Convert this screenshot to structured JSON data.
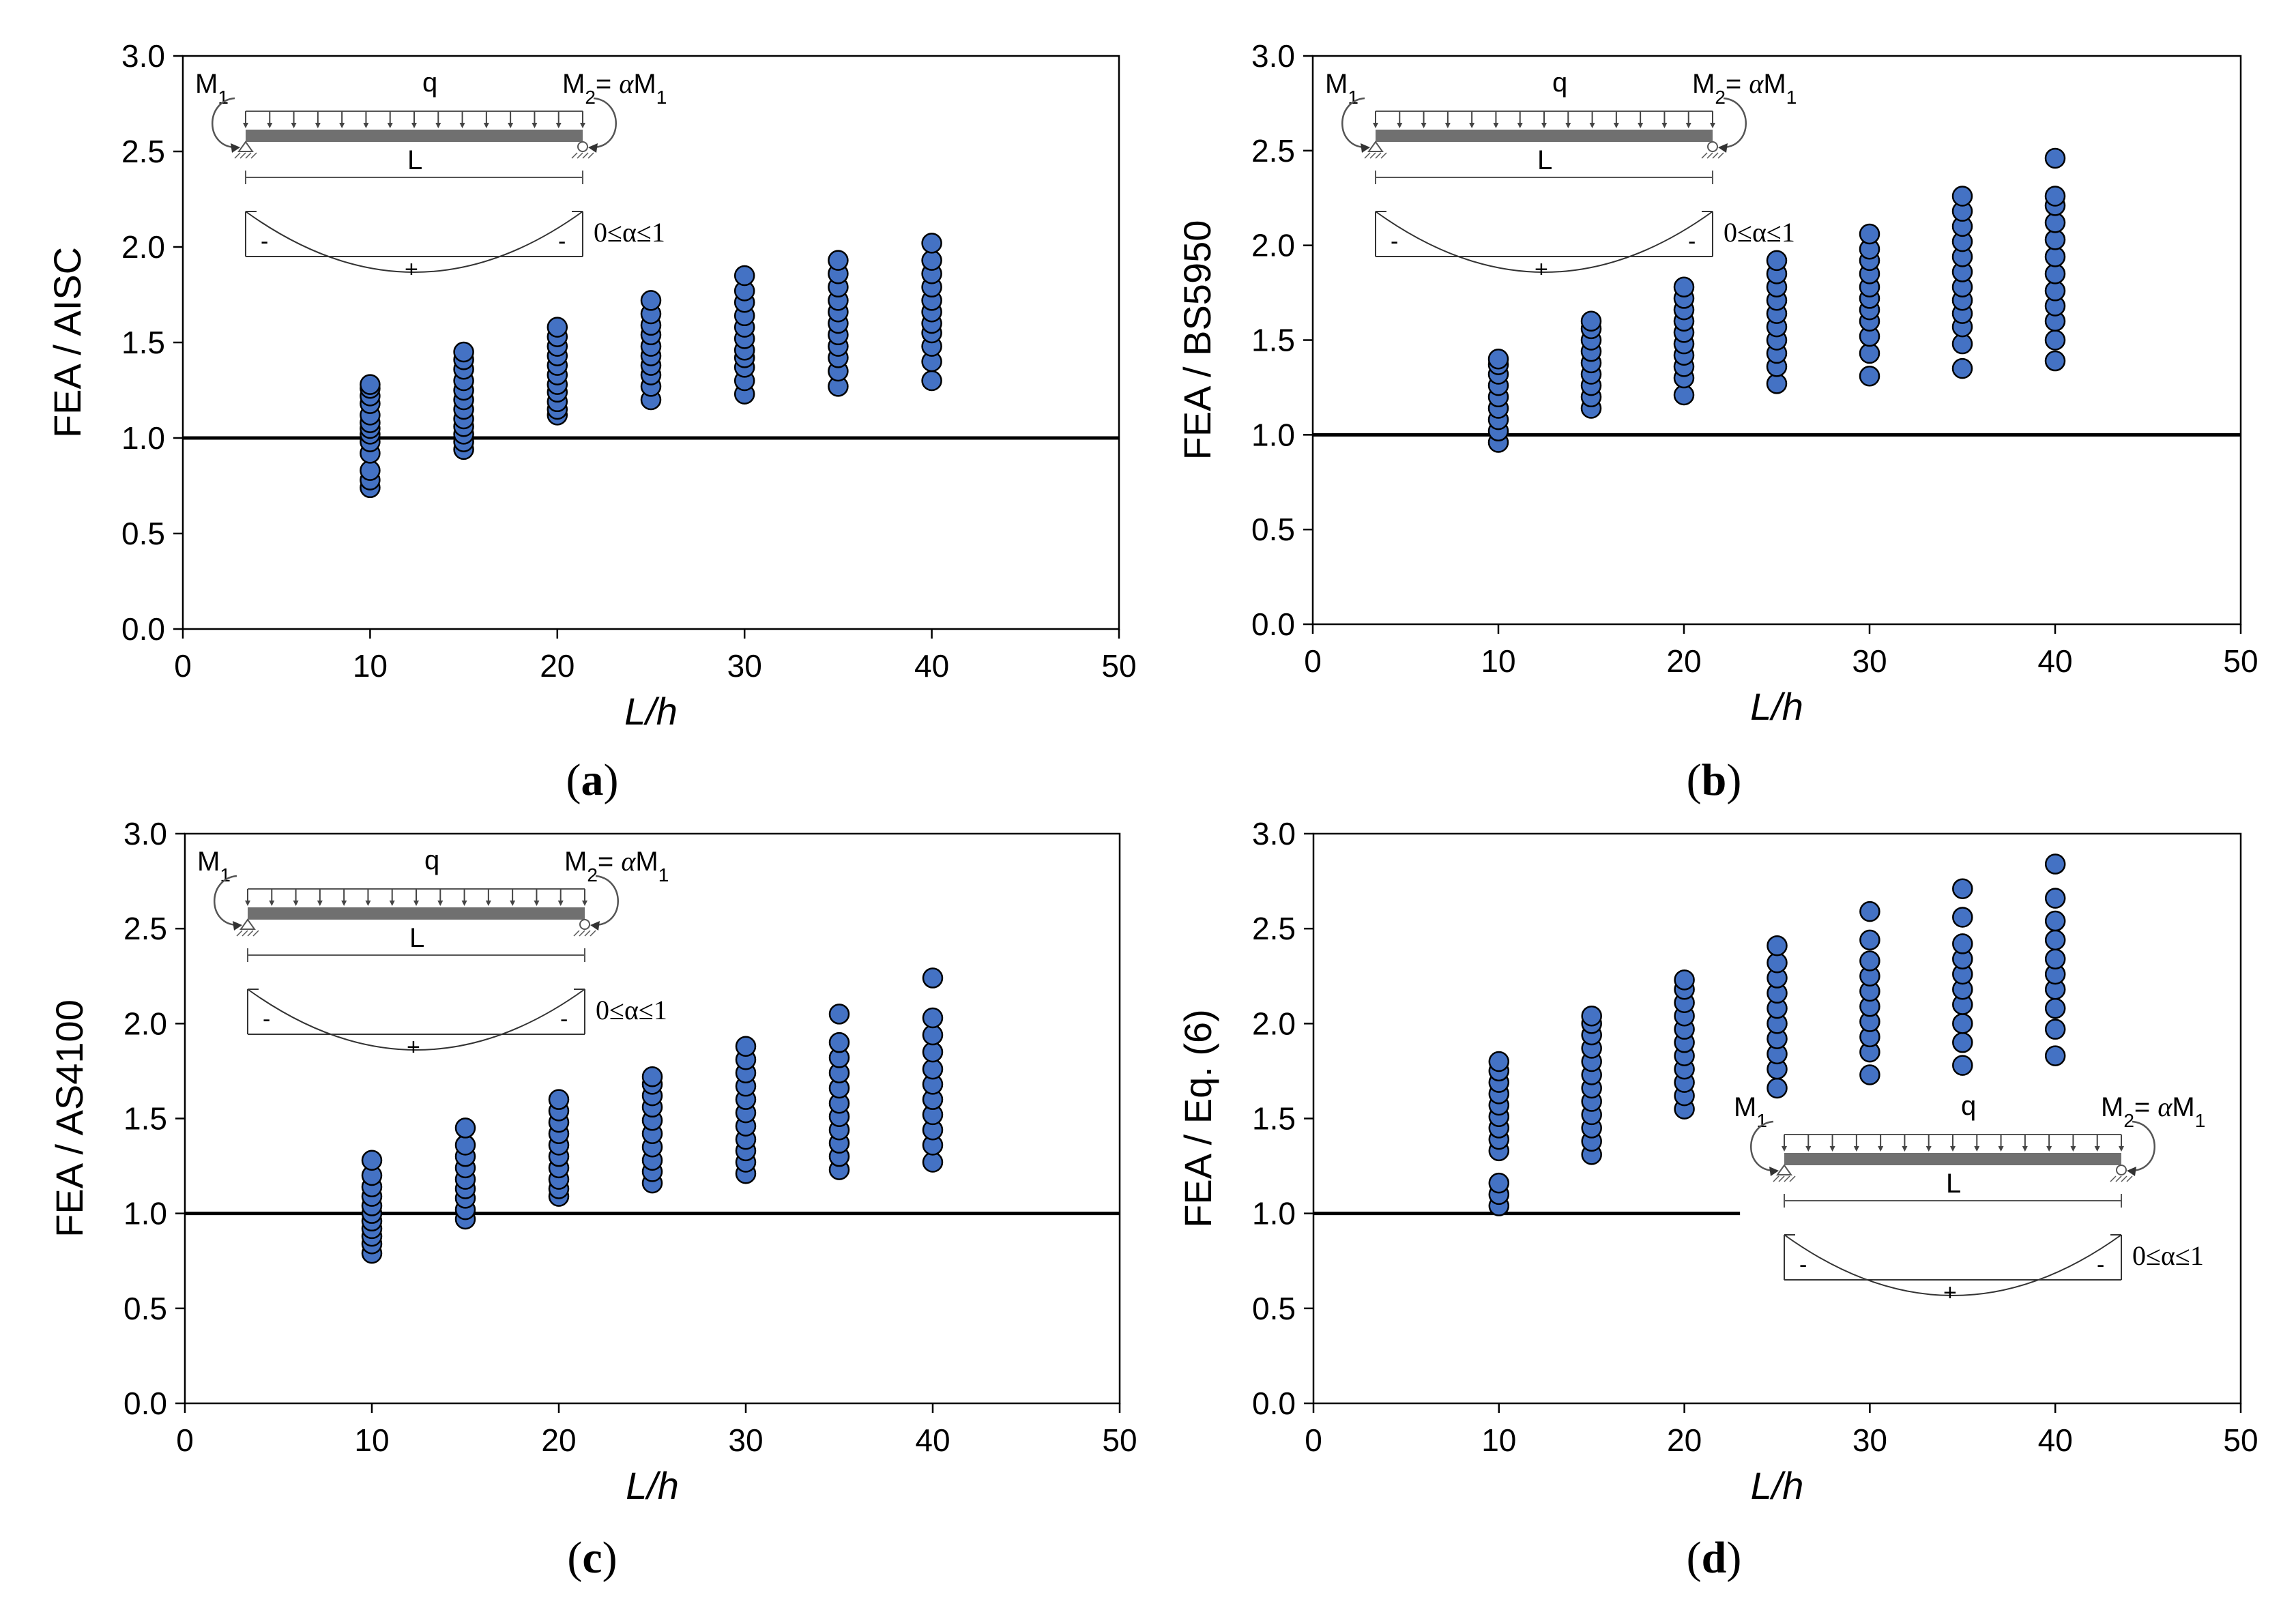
{
  "colors": {
    "marker": "#4472C4",
    "marker_edge": "#000000",
    "axis": "#000000",
    "reference_line": "#000000"
  },
  "inset": {
    "m1": "M1",
    "q": "q",
    "m2": "M2= αM1",
    "span": "L",
    "alpha_range": "0≤α≤1",
    "neg": "-",
    "pos": "+"
  },
  "chart_data": [
    {
      "id": "a",
      "type": "scatter",
      "caption": "(a)",
      "caption_letter": "a",
      "xlabel": "L/h",
      "ylabel": "FEA / AISC",
      "xlim": [
        0,
        50
      ],
      "ylim": [
        0,
        3
      ],
      "xticks": [
        "0",
        "10",
        "20",
        "30",
        "40",
        "50"
      ],
      "yticks": [
        "0.0",
        "0.5",
        "1.0",
        "1.5",
        "2.0",
        "2.5",
        "3.0"
      ],
      "reference_line": 1.0,
      "inset_position": "top-left",
      "series": [
        {
          "x": 10,
          "values": [
            0.74,
            0.78,
            0.83,
            0.92,
            0.98,
            1.02,
            1.05,
            1.08,
            1.12,
            1.18,
            1.22,
            1.26,
            1.28
          ]
        },
        {
          "x": 15,
          "values": [
            0.94,
            0.98,
            1.02,
            1.06,
            1.1,
            1.15,
            1.2,
            1.25,
            1.3,
            1.36,
            1.41,
            1.45
          ]
        },
        {
          "x": 20,
          "values": [
            1.12,
            1.15,
            1.19,
            1.24,
            1.28,
            1.33,
            1.38,
            1.43,
            1.48,
            1.53,
            1.58
          ]
        },
        {
          "x": 25,
          "values": [
            1.2,
            1.27,
            1.33,
            1.38,
            1.43,
            1.48,
            1.54,
            1.59,
            1.65,
            1.72
          ]
        },
        {
          "x": 30,
          "values": [
            1.23,
            1.3,
            1.37,
            1.42,
            1.46,
            1.52,
            1.58,
            1.64,
            1.71,
            1.77,
            1.85
          ]
        },
        {
          "x": 35,
          "values": [
            1.27,
            1.35,
            1.42,
            1.48,
            1.54,
            1.6,
            1.66,
            1.72,
            1.79,
            1.86,
            1.93
          ]
        },
        {
          "x": 40,
          "values": [
            1.3,
            1.4,
            1.48,
            1.55,
            1.6,
            1.66,
            1.72,
            1.79,
            1.86,
            1.93,
            2.02
          ]
        }
      ]
    },
    {
      "id": "b",
      "type": "scatter",
      "caption": "(b)",
      "caption_letter": "b",
      "xlabel": "L/h",
      "ylabel": "FEA / BS5950",
      "xlim": [
        0,
        50
      ],
      "ylim": [
        0,
        3
      ],
      "xticks": [
        "0",
        "10",
        "20",
        "30",
        "40",
        "50"
      ],
      "yticks": [
        "0.0",
        "0.5",
        "1.0",
        "1.5",
        "2.0",
        "2.5",
        "3.0"
      ],
      "reference_line": 1.0,
      "inset_position": "top-left",
      "series": [
        {
          "x": 10,
          "values": [
            0.96,
            1.02,
            1.08,
            1.14,
            1.2,
            1.26,
            1.32,
            1.37,
            1.4
          ]
        },
        {
          "x": 15,
          "values": [
            1.14,
            1.2,
            1.26,
            1.32,
            1.38,
            1.44,
            1.5,
            1.56,
            1.6
          ]
        },
        {
          "x": 20,
          "values": [
            1.21,
            1.3,
            1.36,
            1.42,
            1.48,
            1.54,
            1.6,
            1.66,
            1.72,
            1.78
          ]
        },
        {
          "x": 25,
          "values": [
            1.27,
            1.36,
            1.43,
            1.5,
            1.57,
            1.64,
            1.71,
            1.78,
            1.85,
            1.92
          ]
        },
        {
          "x": 30,
          "values": [
            1.31,
            1.43,
            1.52,
            1.6,
            1.66,
            1.72,
            1.78,
            1.85,
            1.92,
            1.98,
            2.06
          ]
        },
        {
          "x": 35,
          "values": [
            1.35,
            1.48,
            1.57,
            1.64,
            1.71,
            1.78,
            1.86,
            1.94,
            2.02,
            2.1,
            2.18,
            2.26
          ]
        },
        {
          "x": 40,
          "values": [
            1.39,
            1.5,
            1.6,
            1.68,
            1.76,
            1.85,
            1.94,
            2.03,
            2.12,
            2.21,
            2.26,
            2.46
          ]
        }
      ]
    },
    {
      "id": "c",
      "type": "scatter",
      "caption": "(c)",
      "caption_letter": "c",
      "xlabel": "L/h",
      "ylabel": "FEA / AS4100",
      "xlim": [
        0,
        50
      ],
      "ylim": [
        0,
        3
      ],
      "xticks": [
        "0",
        "10",
        "20",
        "30",
        "40",
        "50"
      ],
      "yticks": [
        "0.0",
        "0.5",
        "1.0",
        "1.5",
        "2.0",
        "2.5",
        "3.0"
      ],
      "reference_line": 1.0,
      "inset_position": "top-left",
      "series": [
        {
          "x": 10,
          "values": [
            0.79,
            0.84,
            0.88,
            0.92,
            0.96,
            1.0,
            1.04,
            1.09,
            1.14,
            1.2,
            1.28
          ]
        },
        {
          "x": 15,
          "values": [
            0.97,
            1.02,
            1.08,
            1.13,
            1.18,
            1.24,
            1.3,
            1.36,
            1.45
          ]
        },
        {
          "x": 20,
          "values": [
            1.09,
            1.13,
            1.18,
            1.24,
            1.3,
            1.36,
            1.42,
            1.48,
            1.54,
            1.6
          ]
        },
        {
          "x": 25,
          "values": [
            1.16,
            1.22,
            1.28,
            1.35,
            1.42,
            1.49,
            1.56,
            1.62,
            1.68,
            1.72
          ]
        },
        {
          "x": 30,
          "values": [
            1.21,
            1.27,
            1.33,
            1.39,
            1.46,
            1.53,
            1.6,
            1.67,
            1.74,
            1.81,
            1.88
          ]
        },
        {
          "x": 35,
          "values": [
            1.23,
            1.3,
            1.37,
            1.44,
            1.51,
            1.58,
            1.66,
            1.74,
            1.82,
            1.9,
            2.05
          ]
        },
        {
          "x": 40,
          "values": [
            1.27,
            1.36,
            1.44,
            1.52,
            1.6,
            1.68,
            1.76,
            1.85,
            1.94,
            2.03,
            2.24
          ]
        }
      ]
    },
    {
      "id": "d",
      "type": "scatter",
      "caption": "(d)",
      "caption_letter": "d",
      "xlabel": "L/h",
      "ylabel": "FEA / Eq. (6)",
      "xlim": [
        0,
        50
      ],
      "ylim": [
        0,
        3
      ],
      "xticks": [
        "0",
        "10",
        "20",
        "30",
        "40",
        "50"
      ],
      "yticks": [
        "0.0",
        "0.5",
        "1.0",
        "1.5",
        "2.0",
        "2.5",
        "3.0"
      ],
      "reference_line": 1.0,
      "reference_line_xmax": 23,
      "inset_position": "bottom-right",
      "series": [
        {
          "x": 10,
          "values": [
            1.04,
            1.1,
            1.16,
            1.33,
            1.39,
            1.45,
            1.51,
            1.57,
            1.63,
            1.69,
            1.75,
            1.8
          ]
        },
        {
          "x": 15,
          "values": [
            1.31,
            1.38,
            1.45,
            1.52,
            1.59,
            1.66,
            1.73,
            1.8,
            1.87,
            1.94,
            2.0,
            2.04
          ]
        },
        {
          "x": 20,
          "values": [
            1.55,
            1.62,
            1.69,
            1.76,
            1.83,
            1.9,
            1.97,
            2.04,
            2.11,
            2.18,
            2.23
          ]
        },
        {
          "x": 25,
          "values": [
            1.66,
            1.76,
            1.84,
            1.92,
            2.0,
            2.08,
            2.16,
            2.24,
            2.32,
            2.41
          ]
        },
        {
          "x": 30,
          "values": [
            1.73,
            1.85,
            1.93,
            2.01,
            2.09,
            2.17,
            2.25,
            2.33,
            2.44,
            2.59
          ]
        },
        {
          "x": 35,
          "values": [
            1.78,
            1.9,
            2.0,
            2.1,
            2.18,
            2.26,
            2.34,
            2.42,
            2.56,
            2.71
          ]
        },
        {
          "x": 40,
          "values": [
            1.83,
            1.97,
            2.08,
            2.18,
            2.26,
            2.34,
            2.44,
            2.54,
            2.66,
            2.84
          ]
        }
      ]
    }
  ]
}
